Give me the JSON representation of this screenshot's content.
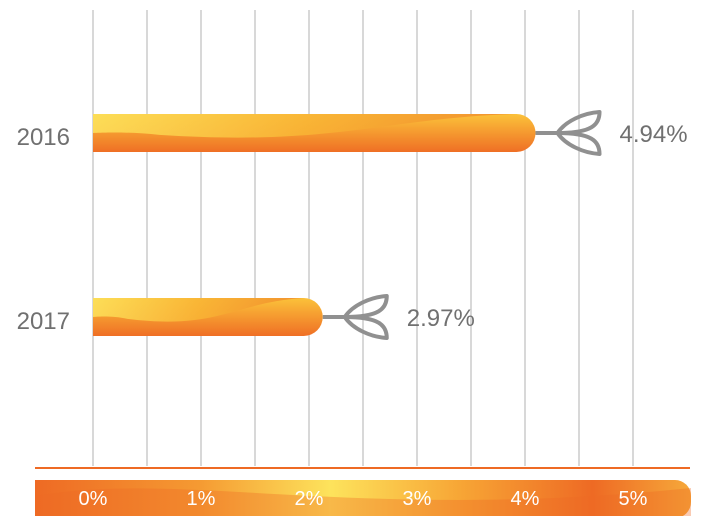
{
  "chart_data": {
    "type": "bar",
    "orientation": "horizontal",
    "categories": [
      "2016",
      "2017"
    ],
    "values": [
      4.94,
      2.97
    ],
    "data_labels": [
      "4.94%",
      "2.97%"
    ],
    "xlim": [
      0,
      5
    ],
    "x_ticks": [
      "0%",
      "1%",
      "2%",
      "3%",
      "4%",
      "5%"
    ],
    "grid": true,
    "colors": {
      "bar_orange": "#ee6a24",
      "bar_yellow": "#fcd84e",
      "arrow_gray": "#909090",
      "grid": "#d8d8d8",
      "text": "#707070",
      "axis_line": "#ee6a24"
    }
  }
}
